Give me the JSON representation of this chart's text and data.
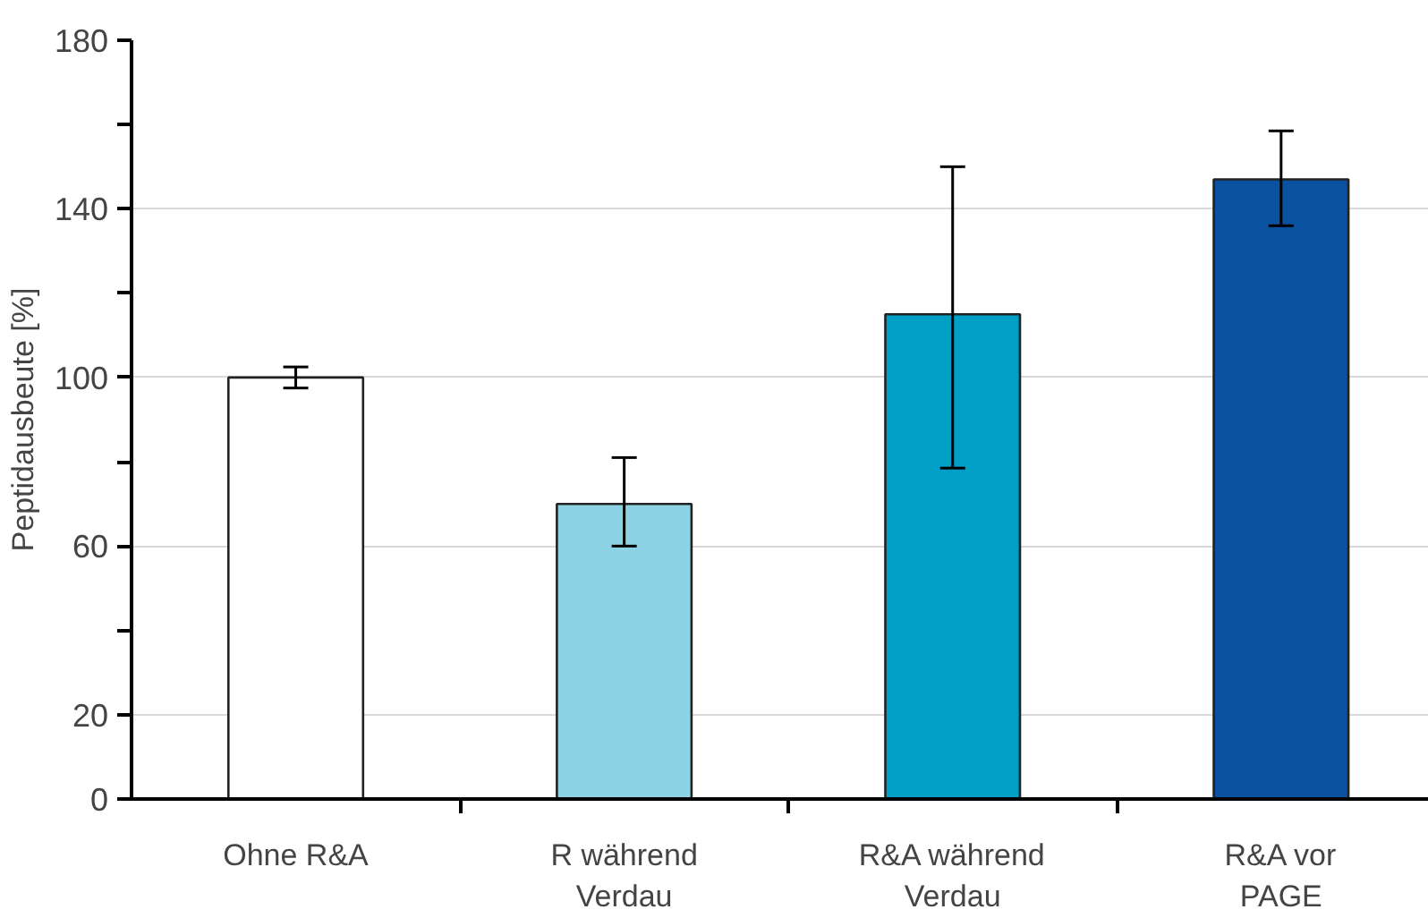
{
  "chart_data": {
    "type": "bar",
    "ylabel": "Peptidausbeute [%]",
    "categories": [
      "Ohne R&A",
      "R während\nVerdau",
      "R&A während\nVerdau",
      "R&A vor\nPAGE"
    ],
    "values": [
      100,
      70,
      115,
      147
    ],
    "colors": [
      "#ffffff",
      "#8dd3e5",
      "#00a0c6",
      "#0a52a0"
    ],
    "errors": [
      [
        97.5,
        102.5
      ],
      [
        60,
        81
      ],
      [
        78.5,
        150
      ],
      [
        136,
        158.5
      ]
    ],
    "ylim": [
      0,
      180
    ],
    "yticks": [
      0,
      20,
      {
        "value": 40,
        "label": null
      },
      60,
      {
        "value": 80,
        "label": null
      },
      100,
      {
        "value": 120,
        "label": null
      },
      140,
      {
        "value": 160,
        "label": null
      },
      180
    ],
    "grid": "y"
  }
}
